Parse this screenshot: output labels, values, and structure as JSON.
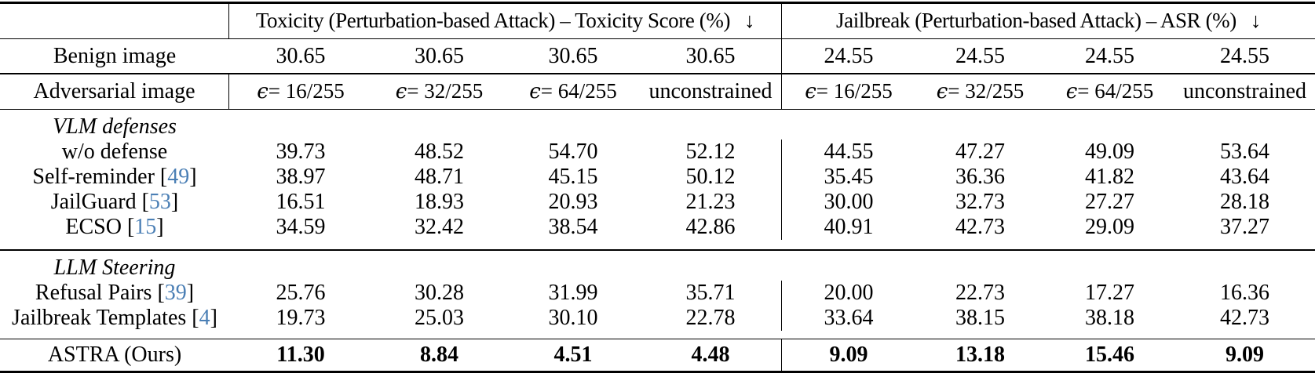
{
  "colors": {
    "citation": "#4b7fb5",
    "text": "#000000",
    "background": "#ffffff"
  },
  "table": {
    "brackets": {
      "open": "[",
      "close": "]"
    },
    "col_groups": [
      {
        "title": "Toxicity (Perturbation-based Attack) – Toxicity Score (%)",
        "arrow": "↓"
      },
      {
        "title": "Jailbreak (Perturbation-based Attack) – ASR (%)",
        "arrow": "↓"
      }
    ],
    "benign": {
      "label": "Benign image",
      "tox": [
        "30.65",
        "30.65",
        "30.65",
        "30.65"
      ],
      "jb": [
        "24.55",
        "24.55",
        "24.55",
        "24.55"
      ]
    },
    "adversarial": {
      "label": "Adversarial image",
      "tox": [
        {
          "eps": "ϵ",
          "rest": " = 16/255"
        },
        {
          "eps": "ϵ",
          "rest": " = 32/255"
        },
        {
          "eps": "ϵ",
          "rest": " = 64/255"
        },
        {
          "eps": "",
          "rest": "unconstrained"
        }
      ],
      "jb": [
        {
          "eps": "ϵ",
          "rest": " = 16/255"
        },
        {
          "eps": "ϵ",
          "rest": " = 32/255"
        },
        {
          "eps": "ϵ",
          "rest": " = 64/255"
        },
        {
          "eps": "",
          "rest": "unconstrained"
        }
      ]
    },
    "sections": [
      {
        "header": "VLM defenses",
        "rows": [
          {
            "label": "w/o defense",
            "cite": "",
            "tox": [
              "39.73",
              "48.52",
              "54.70",
              "52.12"
            ],
            "jb": [
              "44.55",
              "47.27",
              "49.09",
              "53.64"
            ]
          },
          {
            "label": "Self-reminder",
            "cite": "49",
            "tox": [
              "38.97",
              "48.71",
              "45.15",
              "50.12"
            ],
            "jb": [
              "35.45",
              "36.36",
              "41.82",
              "43.64"
            ]
          },
          {
            "label": "JailGuard",
            "cite": "53",
            "tox": [
              "16.51",
              "18.93",
              "20.93",
              "21.23"
            ],
            "jb": [
              "30.00",
              "32.73",
              "27.27",
              "28.18"
            ]
          },
          {
            "label": "ECSO",
            "cite": "15",
            "tox": [
              "34.59",
              "32.42",
              "38.54",
              "42.86"
            ],
            "jb": [
              "40.91",
              "42.73",
              "29.09",
              "37.27"
            ]
          }
        ]
      },
      {
        "header": "LLM Steering",
        "rows": [
          {
            "label": "Refusal Pairs",
            "cite": "39",
            "tox": [
              "25.76",
              "30.28",
              "31.99",
              "35.71"
            ],
            "jb": [
              "20.00",
              "22.73",
              "17.27",
              "16.36"
            ]
          },
          {
            "label": "Jailbreak Templates",
            "cite": "4",
            "tox": [
              "19.73",
              "25.03",
              "30.10",
              "22.78"
            ],
            "jb": [
              "33.64",
              "38.15",
              "38.18",
              "42.73"
            ]
          }
        ]
      }
    ],
    "final": {
      "label": "ASTRA (Ours)",
      "tox": [
        "11.30",
        "8.84",
        "4.51",
        "4.48"
      ],
      "jb": [
        "9.09",
        "13.18",
        "15.46",
        "9.09"
      ]
    }
  }
}
